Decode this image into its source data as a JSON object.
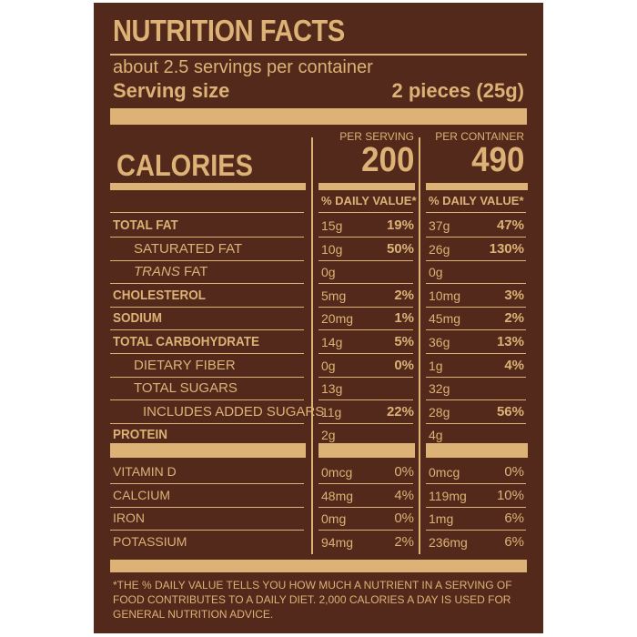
{
  "label": {
    "title": "NUTRITION FACTS",
    "servings_per_container": "about 2.5 servings per container",
    "serving_size_label": "Serving size",
    "serving_size_value": "2 pieces (25g)",
    "calories_label": "CALORIES",
    "per_serving_label": "PER SERVING",
    "per_container_label": "PER CONTAINER",
    "calories_per_serving": "200",
    "calories_per_container": "490",
    "daily_value_header": "% DAILY VALUE*",
    "nutrients": [
      {
        "name": "TOTAL FAT",
        "bold": true,
        "indent": 0,
        "s_amt": "15g",
        "s_dv": "19%",
        "c_amt": "37g",
        "c_dv": "47%"
      },
      {
        "name": "SATURATED FAT",
        "bold": false,
        "indent": 1,
        "s_amt": "10g",
        "s_dv": "50%",
        "c_amt": "26g",
        "c_dv": "130%"
      },
      {
        "name": "TRANS",
        "name_suffix": " FAT",
        "italic_prefix": true,
        "bold": false,
        "indent": 1,
        "s_amt": "0g",
        "s_dv": "",
        "c_amt": "0g",
        "c_dv": ""
      },
      {
        "name": "CHOLESTEROL",
        "bold": true,
        "indent": 0,
        "s_amt": "5mg",
        "s_dv": "2%",
        "c_amt": "10mg",
        "c_dv": "3%"
      },
      {
        "name": "SODIUM",
        "bold": true,
        "indent": 0,
        "s_amt": "20mg",
        "s_dv": "1%",
        "c_amt": "45mg",
        "c_dv": "2%"
      },
      {
        "name": "TOTAL CARBOHYDRATE",
        "bold": true,
        "indent": 0,
        "s_amt": "14g",
        "s_dv": "5%",
        "c_amt": "36g",
        "c_dv": "13%"
      },
      {
        "name": "DIETARY FIBER",
        "bold": false,
        "indent": 1,
        "s_amt": "0g",
        "s_dv": "0%",
        "c_amt": "1g",
        "c_dv": "4%"
      },
      {
        "name": "TOTAL SUGARS",
        "bold": false,
        "indent": 1,
        "s_amt": "13g",
        "s_dv": "",
        "c_amt": "32g",
        "c_dv": ""
      },
      {
        "name": "INCLUDES ADDED SUGARS",
        "bold": false,
        "indent": 2,
        "s_amt": "11g",
        "s_dv": "22%",
        "c_amt": "28g",
        "c_dv": "56%"
      },
      {
        "name": "PROTEIN",
        "bold": true,
        "indent": 0,
        "s_amt": "2g",
        "s_dv": "",
        "c_amt": "4g",
        "c_dv": ""
      }
    ],
    "vitamins": [
      {
        "name": "VITAMIN D",
        "s_amt": "0mcg",
        "s_dv": "0%",
        "c_amt": "0mcg",
        "c_dv": "0%"
      },
      {
        "name": "CALCIUM",
        "s_amt": "48mg",
        "s_dv": "4%",
        "c_amt": "119mg",
        "c_dv": "10%"
      },
      {
        "name": "IRON",
        "s_amt": "0mg",
        "s_dv": "0%",
        "c_amt": "1mg",
        "c_dv": "6%"
      },
      {
        "name": "POTASSIUM",
        "s_amt": "94mg",
        "s_dv": "2%",
        "c_amt": "236mg",
        "c_dv": "6%"
      }
    ],
    "footnote": "*THE % DAILY VALUE TELLS YOU HOW MUCH A NUTRIENT IN A SERVING OF FOOD CONTRIBUTES TO A DAILY DIET. 2,000 CALORIES A DAY IS USED FOR GENERAL NUTRITION ADVICE.",
    "colors": {
      "background": "#53291b",
      "ink": "#dcb276"
    }
  }
}
